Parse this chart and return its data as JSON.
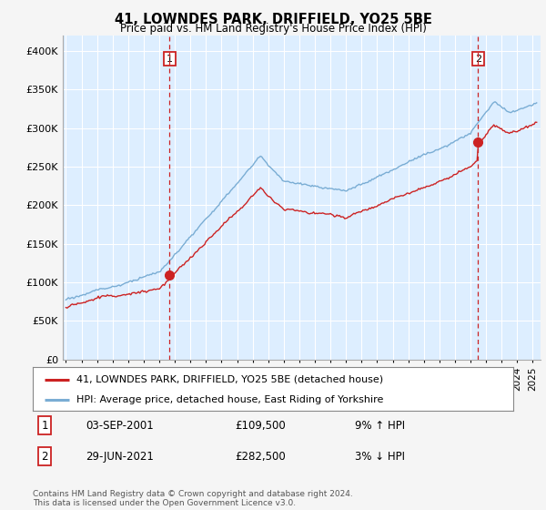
{
  "title": "41, LOWNDES PARK, DRIFFIELD, YO25 5BE",
  "subtitle": "Price paid vs. HM Land Registry's House Price Index (HPI)",
  "ylabel_ticks": [
    "£0",
    "£50K",
    "£100K",
    "£150K",
    "£200K",
    "£250K",
    "£300K",
    "£350K",
    "£400K"
  ],
  "ytick_vals": [
    0,
    50000,
    100000,
    150000,
    200000,
    250000,
    300000,
    350000,
    400000
  ],
  "ylim": [
    0,
    420000
  ],
  "sale1_year": 2001.67,
  "sale1_price": 109500,
  "sale2_year": 2021.49,
  "sale2_price": 282500,
  "red_line_color": "#cc2222",
  "blue_line_color": "#7aadd4",
  "plot_bg_color": "#ddeeff",
  "grid_color": "#ffffff",
  "background_color": "#f5f5f5",
  "legend_label_red": "41, LOWNDES PARK, DRIFFIELD, YO25 5BE (detached house)",
  "legend_label_blue": "HPI: Average price, detached house, East Riding of Yorkshire",
  "table_row1": [
    "1",
    "03-SEP-2001",
    "£109,500",
    "9% ↑ HPI"
  ],
  "table_row2": [
    "2",
    "29-JUN-2021",
    "£282,500",
    "3% ↓ HPI"
  ],
  "footnote": "Contains HM Land Registry data © Crown copyright and database right 2024.\nThis data is licensed under the Open Government Licence v3.0."
}
